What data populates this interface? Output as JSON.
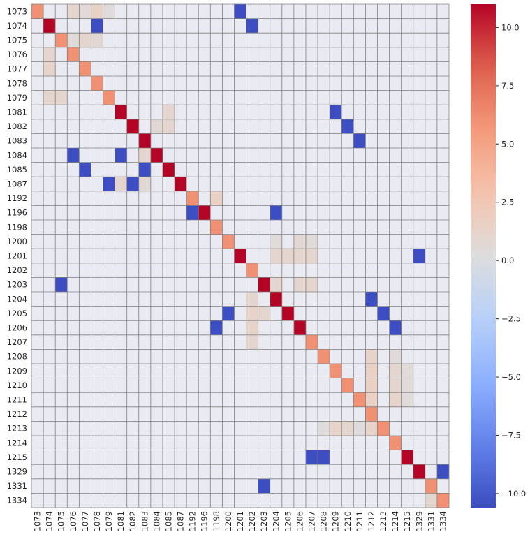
{
  "chart_data": {
    "type": "heatmap",
    "title": "",
    "xlabel": "",
    "ylabel": "",
    "x_labels": [
      "1073",
      "1074",
      "1075",
      "1076",
      "1077",
      "1078",
      "1079",
      "1081",
      "1082",
      "1083",
      "1084",
      "1085",
      "1087",
      "1192",
      "1196",
      "1198",
      "1200",
      "1201",
      "1202",
      "1203",
      "1204",
      "1205",
      "1206",
      "1207",
      "1208",
      "1209",
      "1210",
      "1211",
      "1212",
      "1213",
      "1214",
      "1215",
      "1329",
      "1331",
      "1334"
    ],
    "y_labels": [
      "1073",
      "1074",
      "1075",
      "1076",
      "1077",
      "1078",
      "1079",
      "1081",
      "1082",
      "1083",
      "1084",
      "1085",
      "1087",
      "1192",
      "1196",
      "1198",
      "1200",
      "1201",
      "1202",
      "1203",
      "1204",
      "1205",
      "1206",
      "1207",
      "1208",
      "1209",
      "1210",
      "1211",
      "1212",
      "1213",
      "1214",
      "1215",
      "1329",
      "1331",
      "1334"
    ],
    "zlim": [
      -10.6,
      11
    ],
    "colorbar_ticks": [
      10.0,
      7.5,
      5.0,
      2.5,
      0.0,
      -2.5,
      -5.0,
      -7.5,
      -10.0
    ],
    "colormap": "coolwarm",
    "grid": true,
    "background_color": "#eaeaf2",
    "cells": [
      {
        "row": "1073",
        "col": "1073",
        "value": 6
      },
      {
        "row": "1073",
        "col": "1076",
        "value": 1
      },
      {
        "row": "1073",
        "col": "1077",
        "value": 0.5
      },
      {
        "row": "1073",
        "col": "1078",
        "value": 1.5
      },
      {
        "row": "1073",
        "col": "1079",
        "value": 0.3
      },
      {
        "row": "1073",
        "col": "1201",
        "value": -10.5
      },
      {
        "row": "1074",
        "col": "1074",
        "value": 11
      },
      {
        "row": "1074",
        "col": "1078",
        "value": -10.5
      },
      {
        "row": "1074",
        "col": "1202",
        "value": -10.5
      },
      {
        "row": "1075",
        "col": "1075",
        "value": 6
      },
      {
        "row": "1075",
        "col": "1076",
        "value": 0.5
      },
      {
        "row": "1075",
        "col": "1077",
        "value": 1
      },
      {
        "row": "1075",
        "col": "1078",
        "value": 0.8
      },
      {
        "row": "1076",
        "col": "1074",
        "value": 1
      },
      {
        "row": "1076",
        "col": "1076",
        "value": 6
      },
      {
        "row": "1077",
        "col": "1074",
        "value": 1.2
      },
      {
        "row": "1077",
        "col": "1077",
        "value": 6
      },
      {
        "row": "1078",
        "col": "1078",
        "value": 6
      },
      {
        "row": "1079",
        "col": "1074",
        "value": 1
      },
      {
        "row": "1079",
        "col": "1075",
        "value": 1
      },
      {
        "row": "1079",
        "col": "1079",
        "value": 6
      },
      {
        "row": "1081",
        "col": "1081",
        "value": 11
      },
      {
        "row": "1081",
        "col": "1085",
        "value": 1
      },
      {
        "row": "1081",
        "col": "1209",
        "value": -10.5
      },
      {
        "row": "1082",
        "col": "1082",
        "value": 11
      },
      {
        "row": "1082",
        "col": "1084",
        "value": 0.7
      },
      {
        "row": "1082",
        "col": "1085",
        "value": 1
      },
      {
        "row": "1082",
        "col": "1210",
        "value": -10.5
      },
      {
        "row": "1083",
        "col": "1083",
        "value": 11
      },
      {
        "row": "1083",
        "col": "1211",
        "value": -10.5
      },
      {
        "row": "1084",
        "col": "1076",
        "value": -10.5
      },
      {
        "row": "1084",
        "col": "1081",
        "value": -10.5
      },
      {
        "row": "1084",
        "col": "1083",
        "value": 1
      },
      {
        "row": "1084",
        "col": "1084",
        "value": 11
      },
      {
        "row": "1085",
        "col": "1077",
        "value": -10.5
      },
      {
        "row": "1085",
        "col": "1083",
        "value": -10.5
      },
      {
        "row": "1085",
        "col": "1085",
        "value": 11
      },
      {
        "row": "1087",
        "col": "1079",
        "value": -10.5
      },
      {
        "row": "1087",
        "col": "1081",
        "value": 1
      },
      {
        "row": "1087",
        "col": "1082",
        "value": -10.5
      },
      {
        "row": "1087",
        "col": "1083",
        "value": 0.7
      },
      {
        "row": "1087",
        "col": "1087",
        "value": 11
      },
      {
        "row": "1192",
        "col": "1192",
        "value": 6
      },
      {
        "row": "1192",
        "col": "1198",
        "value": 1.5
      },
      {
        "row": "1196",
        "col": "1192",
        "value": -10.5
      },
      {
        "row": "1196",
        "col": "1196",
        "value": 11
      },
      {
        "row": "1196",
        "col": "1204",
        "value": -10.5
      },
      {
        "row": "1198",
        "col": "1198",
        "value": 6
      },
      {
        "row": "1200",
        "col": "1200",
        "value": 6
      },
      {
        "row": "1200",
        "col": "1204",
        "value": 0.5
      },
      {
        "row": "1200",
        "col": "1206",
        "value": 0.8
      },
      {
        "row": "1200",
        "col": "1207",
        "value": 0.5
      },
      {
        "row": "1201",
        "col": "1201",
        "value": 11
      },
      {
        "row": "1201",
        "col": "1204",
        "value": 1
      },
      {
        "row": "1201",
        "col": "1205",
        "value": 1
      },
      {
        "row": "1201",
        "col": "1206",
        "value": 1
      },
      {
        "row": "1201",
        "col": "1207",
        "value": 1
      },
      {
        "row": "1201",
        "col": "1329",
        "value": -10.5
      },
      {
        "row": "1202",
        "col": "1202",
        "value": 6
      },
      {
        "row": "1203",
        "col": "1075",
        "value": -10.5
      },
      {
        "row": "1203",
        "col": "1203",
        "value": 11
      },
      {
        "row": "1203",
        "col": "1204",
        "value": 1
      },
      {
        "row": "1203",
        "col": "1206",
        "value": 1
      },
      {
        "row": "1203",
        "col": "1207",
        "value": 1
      },
      {
        "row": "1204",
        "col": "1202",
        "value": 1
      },
      {
        "row": "1204",
        "col": "1204",
        "value": 11
      },
      {
        "row": "1204",
        "col": "1212",
        "value": -10.5
      },
      {
        "row": "1205",
        "col": "1200",
        "value": -10.5
      },
      {
        "row": "1205",
        "col": "1202",
        "value": 1.2
      },
      {
        "row": "1205",
        "col": "1203",
        "value": 1
      },
      {
        "row": "1205",
        "col": "1205",
        "value": 11
      },
      {
        "row": "1205",
        "col": "1213",
        "value": -10.5
      },
      {
        "row": "1206",
        "col": "1198",
        "value": -10.5
      },
      {
        "row": "1206",
        "col": "1202",
        "value": 1.2
      },
      {
        "row": "1206",
        "col": "1206",
        "value": 11
      },
      {
        "row": "1206",
        "col": "1214",
        "value": -10.5
      },
      {
        "row": "1207",
        "col": "1202",
        "value": 1
      },
      {
        "row": "1207",
        "col": "1207",
        "value": 6
      },
      {
        "row": "1208",
        "col": "1208",
        "value": 6
      },
      {
        "row": "1208",
        "col": "1212",
        "value": 1.2
      },
      {
        "row": "1208",
        "col": "1214",
        "value": 0.5
      },
      {
        "row": "1209",
        "col": "1209",
        "value": 6
      },
      {
        "row": "1209",
        "col": "1212",
        "value": 1.5
      },
      {
        "row": "1209",
        "col": "1214",
        "value": 1
      },
      {
        "row": "1209",
        "col": "1215",
        "value": 0.5
      },
      {
        "row": "1210",
        "col": "1210",
        "value": 6
      },
      {
        "row": "1210",
        "col": "1212",
        "value": 1.5
      },
      {
        "row": "1210",
        "col": "1214",
        "value": 1
      },
      {
        "row": "1210",
        "col": "1215",
        "value": 0.5
      },
      {
        "row": "1211",
        "col": "1211",
        "value": 6
      },
      {
        "row": "1211",
        "col": "1212",
        "value": 1.5
      },
      {
        "row": "1211",
        "col": "1214",
        "value": 1.2
      },
      {
        "row": "1211",
        "col": "1215",
        "value": 0.5
      },
      {
        "row": "1212",
        "col": "1212",
        "value": 6
      },
      {
        "row": "1213",
        "col": "1208",
        "value": 0.3
      },
      {
        "row": "1213",
        "col": "1209",
        "value": 1.2
      },
      {
        "row": "1213",
        "col": "1210",
        "value": 1
      },
      {
        "row": "1213",
        "col": "1211",
        "value": 0.3
      },
      {
        "row": "1213",
        "col": "1212",
        "value": 1.2
      },
      {
        "row": "1213",
        "col": "1213",
        "value": 6
      },
      {
        "row": "1214",
        "col": "1214",
        "value": 6
      },
      {
        "row": "1215",
        "col": "1207",
        "value": -10.5
      },
      {
        "row": "1215",
        "col": "1208",
        "value": -10.5
      },
      {
        "row": "1215",
        "col": "1215",
        "value": 11
      },
      {
        "row": "1329",
        "col": "1329",
        "value": 11
      },
      {
        "row": "1329",
        "col": "1334",
        "value": -10.5
      },
      {
        "row": "1331",
        "col": "1203",
        "value": -10.5
      },
      {
        "row": "1331",
        "col": "1331",
        "value": 6
      },
      {
        "row": "1334",
        "col": "1331",
        "value": 1
      },
      {
        "row": "1334",
        "col": "1334",
        "value": 6
      }
    ]
  }
}
